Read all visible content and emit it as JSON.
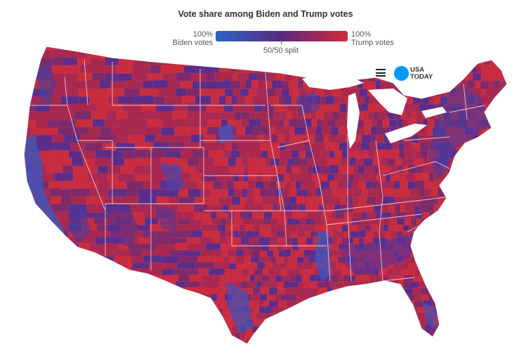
{
  "map": {
    "title": "Vote share among Biden and Trump votes",
    "legend": {
      "left_pct": "100%",
      "left_label": "Biden votes",
      "right_pct": "100%",
      "right_label": "Trump votes",
      "midpoint_label": "50/50 split",
      "colors": {
        "biden": "#2b63c8",
        "mid": "#5a2a7e",
        "trump": "#d12a3a"
      }
    },
    "region": "Contiguous United States, counties",
    "fill_colors": {
      "strong_trump": "#c92c3e",
      "lean_trump": "#a8284f",
      "mixed": "#7e2a6a",
      "lean_biden": "#5a2d8a",
      "strong_biden": "#3b56c0"
    }
  },
  "header": {
    "menu_icon": "hamburger-menu-icon",
    "logo_line1": "USA",
    "logo_line2": "TODAY"
  }
}
